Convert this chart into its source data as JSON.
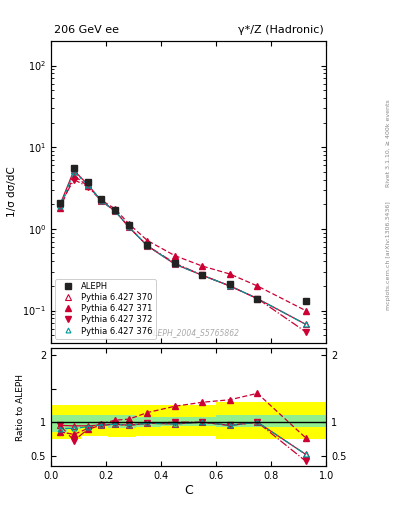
{
  "title_left": "206 GeV ee",
  "title_right": "γ*/Z (Hadronic)",
  "ylabel_main": "1/σ dσ/dC",
  "ylabel_ratio": "Ratio to ALEPH",
  "xlabel": "C",
  "right_label_top": "Rivet 3.1.10, ≥ 400k events",
  "right_label_bot": "mcplots.cern.ch [arXiv:1306.3436]",
  "watermark": "ALEPH_2004_S5765862",
  "aleph_x": [
    0.033,
    0.083,
    0.133,
    0.183,
    0.233,
    0.283,
    0.35,
    0.45,
    0.55,
    0.65,
    0.75,
    0.925
  ],
  "aleph_y": [
    2.1,
    5.5,
    3.7,
    2.3,
    1.7,
    1.1,
    0.63,
    0.38,
    0.27,
    0.21,
    0.14,
    0.13
  ],
  "p370_x": [
    0.033,
    0.083,
    0.133,
    0.183,
    0.233,
    0.283,
    0.35,
    0.45,
    0.55,
    0.65,
    0.75,
    0.925
  ],
  "p370_y": [
    2.0,
    5.2,
    3.5,
    2.2,
    1.65,
    1.05,
    0.62,
    0.37,
    0.27,
    0.2,
    0.14,
    0.068
  ],
  "p371_x": [
    0.033,
    0.083,
    0.133,
    0.183,
    0.233,
    0.283,
    0.35,
    0.45,
    0.55,
    0.65,
    0.75,
    0.925
  ],
  "p371_y": [
    1.8,
    4.5,
    3.35,
    2.25,
    1.75,
    1.15,
    0.72,
    0.47,
    0.35,
    0.28,
    0.2,
    0.1
  ],
  "p372_x": [
    0.033,
    0.083,
    0.133,
    0.183,
    0.233,
    0.283,
    0.35,
    0.45,
    0.55,
    0.65,
    0.75,
    0.925
  ],
  "p372_y": [
    2.0,
    4.0,
    3.3,
    2.2,
    1.65,
    1.05,
    0.62,
    0.38,
    0.27,
    0.2,
    0.14,
    0.055
  ],
  "p376_x": [
    0.033,
    0.083,
    0.133,
    0.183,
    0.233,
    0.283,
    0.35,
    0.45,
    0.55,
    0.65,
    0.75,
    0.925
  ],
  "p376_y": [
    1.9,
    5.0,
    3.45,
    2.2,
    1.65,
    1.05,
    0.62,
    0.37,
    0.27,
    0.2,
    0.14,
    0.068
  ],
  "color_aleph": "#222222",
  "color_370": "#cc0033",
  "color_371": "#cc0033",
  "color_372": "#cc0033",
  "color_376": "#009999",
  "ylim_main": [
    0.04,
    200
  ],
  "ylim_ratio": [
    0.35,
    2.1
  ],
  "xlim": [
    0.0,
    1.0
  ],
  "band_x_edges": [
    0.0,
    0.058,
    0.108,
    0.158,
    0.208,
    0.258,
    0.308,
    0.4,
    0.5,
    0.6,
    0.7,
    0.8,
    1.0
  ],
  "band_green_lo": [
    0.85,
    0.9,
    0.95,
    0.95,
    0.92,
    0.92,
    0.93,
    0.95,
    0.95,
    0.93,
    0.93,
    0.93
  ],
  "band_green_hi": [
    1.1,
    1.1,
    1.1,
    1.1,
    1.1,
    1.1,
    1.08,
    1.08,
    1.08,
    1.1,
    1.1,
    1.1
  ],
  "band_yellow_lo": [
    0.75,
    0.75,
    0.8,
    0.8,
    0.78,
    0.78,
    0.8,
    0.8,
    0.8,
    0.75,
    0.75,
    0.75
  ],
  "band_yellow_hi": [
    1.25,
    1.25,
    1.25,
    1.25,
    1.25,
    1.25,
    1.25,
    1.25,
    1.25,
    1.3,
    1.3,
    1.3
  ]
}
